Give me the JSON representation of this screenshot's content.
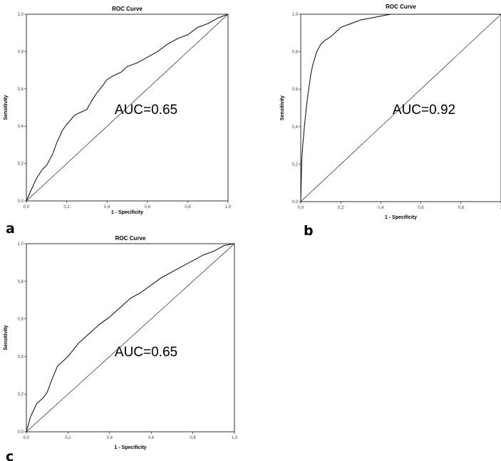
{
  "chart_data": [
    {
      "type": "line",
      "panel": "a",
      "title": "ROC Curve",
      "xlabel": "1 - Specificity",
      "ylabel": "Sensitivity",
      "xticks": [
        "0,0",
        "0,2",
        "0,4",
        "0,6",
        "0,8",
        "1,0"
      ],
      "yticks": [
        "0,0",
        "0,2",
        "0,4",
        "0,6",
        "0,8",
        "1,0"
      ],
      "xlim": [
        0,
        1
      ],
      "ylim": [
        0,
        1
      ],
      "annotation": "AUC=0.65",
      "series": [
        {
          "x": [
            0,
            0.02,
            0.05,
            0.08,
            0.1,
            0.13,
            0.15,
            0.18,
            0.2,
            0.24,
            0.28,
            0.3,
            0.32,
            0.35,
            0.38,
            0.4,
            0.43,
            0.47,
            0.5,
            0.55,
            0.6,
            0.65,
            0.7,
            0.75,
            0.8,
            0.85,
            0.9,
            0.95,
            1.0
          ],
          "y": [
            0,
            0.05,
            0.12,
            0.17,
            0.19,
            0.25,
            0.31,
            0.38,
            0.41,
            0.46,
            0.48,
            0.49,
            0.53,
            0.58,
            0.62,
            0.65,
            0.67,
            0.69,
            0.72,
            0.74,
            0.77,
            0.8,
            0.84,
            0.87,
            0.89,
            0.93,
            0.95,
            0.98,
            1.0
          ]
        }
      ]
    },
    {
      "type": "line",
      "panel": "b",
      "title": "ROC Curve",
      "xlabel": "1 - Specificity",
      "ylabel": "Sensitivity",
      "xticks": [
        "0,0",
        "0,2",
        "0,4",
        "0,6",
        "0,8",
        "1"
      ],
      "yticks": [
        "0,0",
        "0,2",
        "0,4",
        "0,6",
        "0,8",
        "1,0"
      ],
      "xlim": [
        0,
        1
      ],
      "ylim": [
        0,
        1
      ],
      "annotation": "AUC=0.92",
      "series": [
        {
          "x": [
            0,
            0.005,
            0.01,
            0.02,
            0.03,
            0.04,
            0.05,
            0.06,
            0.08,
            0.1,
            0.12,
            0.15,
            0.18,
            0.2,
            0.25,
            0.3,
            0.35,
            0.4,
            0.45,
            0.5,
            0.6,
            0.8,
            1.0
          ],
          "y": [
            0,
            0.22,
            0.3,
            0.42,
            0.52,
            0.6,
            0.68,
            0.73,
            0.8,
            0.84,
            0.86,
            0.88,
            0.91,
            0.93,
            0.95,
            0.97,
            0.98,
            0.99,
            1.0,
            1.0,
            1.0,
            1.0,
            1.0
          ]
        }
      ]
    },
    {
      "type": "line",
      "panel": "c",
      "title": "ROC Curve",
      "xlabel": "1 - Specificity",
      "ylabel": "Sensitivity",
      "xticks": [
        "0,0",
        "0,2",
        "0,4",
        "0,6",
        "0,8",
        "1,0"
      ],
      "yticks": [
        "0,0",
        "0,2",
        "0,4",
        "0,6",
        "0,8",
        "1,0"
      ],
      "xlim": [
        0,
        1
      ],
      "ylim": [
        0,
        1
      ],
      "annotation": "AUC=0.65",
      "series": [
        {
          "x": [
            0,
            0.02,
            0.05,
            0.08,
            0.1,
            0.12,
            0.15,
            0.18,
            0.2,
            0.25,
            0.3,
            0.35,
            0.4,
            0.45,
            0.5,
            0.55,
            0.6,
            0.65,
            0.7,
            0.75,
            0.8,
            0.85,
            0.9,
            0.95,
            1.0
          ],
          "y": [
            0,
            0.08,
            0.15,
            0.18,
            0.21,
            0.27,
            0.35,
            0.38,
            0.4,
            0.47,
            0.52,
            0.57,
            0.61,
            0.66,
            0.71,
            0.74,
            0.78,
            0.82,
            0.85,
            0.88,
            0.91,
            0.94,
            0.96,
            0.99,
            1.0
          ]
        }
      ]
    }
  ]
}
